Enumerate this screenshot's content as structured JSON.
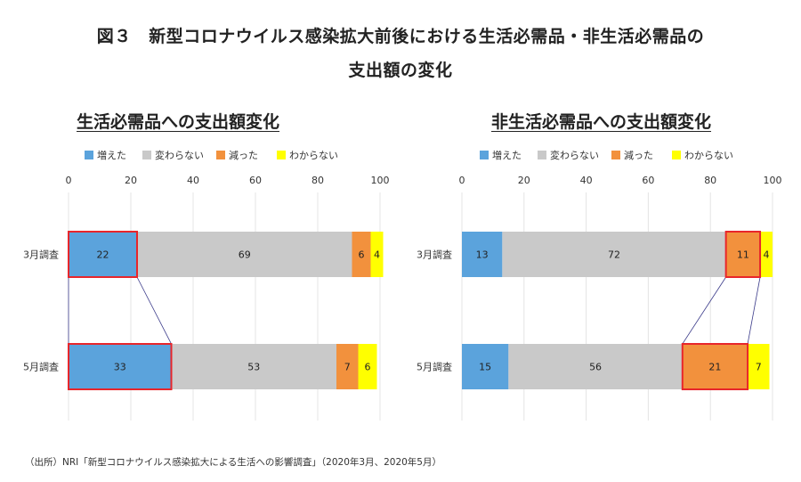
{
  "title_line1": "図３　新型コロナウイルス感染拡大前後における生活必需品・非生活必需品の",
  "title_line2": "支出額の変化",
  "source": "（出所）NRI「新型コロナウイルス感染拡大による生活への影響調査」（2020年3月、2020年5月）",
  "colors": {
    "増えた": "#5ba3dc",
    "変わらない": "#c9c9c9",
    "減った": "#f2913d",
    "わからない": "#ffff00",
    "highlight": "#e8262b",
    "connector": "#3b3b8a"
  },
  "chart_data": [
    {
      "type": "bar",
      "orientation": "horizontal",
      "stacked": true,
      "title": "生活必需品への支出額変化",
      "categories": [
        "3月調査",
        "5月調査"
      ],
      "series": [
        {
          "name": "増えた",
          "values": [
            22,
            33
          ]
        },
        {
          "name": "変わらない",
          "values": [
            69,
            53
          ]
        },
        {
          "name": "減った",
          "values": [
            6,
            7
          ]
        },
        {
          "name": "わからない",
          "values": [
            4,
            6
          ]
        }
      ],
      "xlim": [
        0,
        100
      ],
      "xticks": [
        0,
        20,
        40,
        60,
        80,
        100
      ],
      "legend": "top",
      "highlight_series": "増えた"
    },
    {
      "type": "bar",
      "orientation": "horizontal",
      "stacked": true,
      "title": "非生活必需品への支出額変化",
      "categories": [
        "3月調査",
        "5月調査"
      ],
      "series": [
        {
          "name": "増えた",
          "values": [
            13,
            15
          ]
        },
        {
          "name": "変わらない",
          "values": [
            72,
            56
          ]
        },
        {
          "name": "減った",
          "values": [
            11,
            21
          ]
        },
        {
          "name": "わからない",
          "values": [
            4,
            7
          ]
        }
      ],
      "xlim": [
        0,
        100
      ],
      "xticks": [
        0,
        20,
        40,
        60,
        80,
        100
      ],
      "legend": "top",
      "highlight_series": "減った"
    }
  ]
}
